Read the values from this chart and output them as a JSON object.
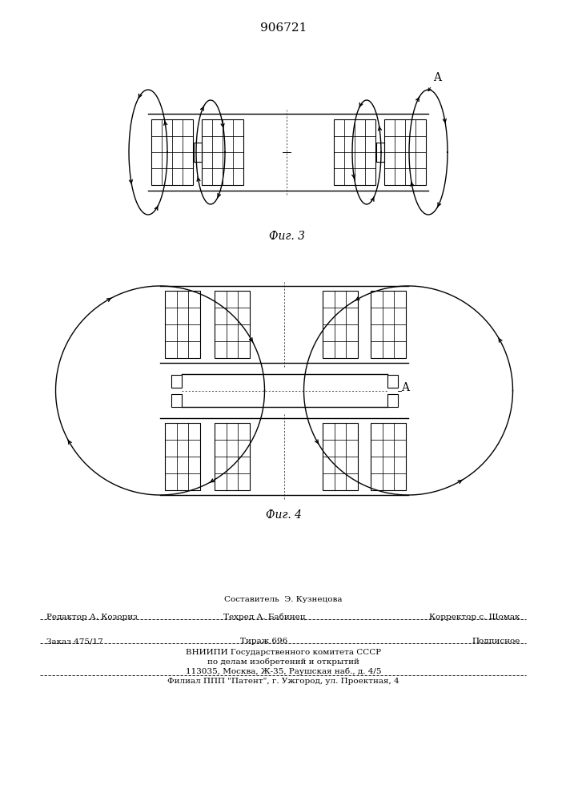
{
  "title": "906721",
  "fig3_label": "Фиг. 3",
  "fig4_label": "Фиг. 4",
  "label_A": "A",
  "footer_line1": "Составитель  Э. Кузнецова",
  "footer_line2_left": "Редактор А. Козориз",
  "footer_line2_mid": "Техред А. Бабинец",
  "footer_line2_right": "Корректор с. Шомак",
  "footer_line3_left": "Заказ 475/17",
  "footer_line3_mid": "Тираж 696",
  "footer_line3_right": "Подписное",
  "footer_line4": "ВНИИПИ Государственного комитета СССР",
  "footer_line5": "по делам изобретений и открытий",
  "footer_line6": "113035, Москва, Ж-35, Раушская наб., д. 4/5",
  "footer_line7": "Филиал ППП \"Патент\", г. Ужгород, ул. Проектная, 4",
  "bg_color": "#ffffff",
  "line_color": "#000000"
}
